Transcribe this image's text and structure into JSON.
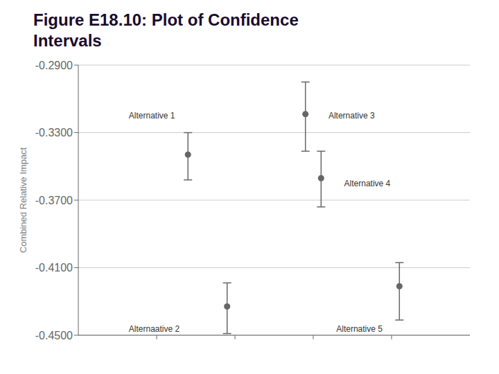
{
  "chart_data": {
    "type": "scatter",
    "title": [
      "Figure E18.10: Plot of Confidence",
      "Intervals"
    ],
    "y_label": "Combined Relative Impact",
    "x": [
      0.28,
      0.38,
      0.58,
      0.62,
      0.82
    ],
    "values": [
      -0.343,
      -0.433,
      -0.319,
      -0.357,
      -0.421
    ],
    "error_low": [
      -0.358,
      -0.449,
      -0.341,
      -0.374,
      -0.441
    ],
    "error_high": [
      -0.33,
      -0.419,
      -0.3,
      -0.341,
      -0.407
    ],
    "color": "#666666",
    "xlim": [
      0.0,
      1.0
    ],
    "xticks": [
      0.2,
      0.4,
      0.6,
      0.8
    ],
    "ylim": [
      -0.45,
      -0.29
    ],
    "yticks": [
      {
        "value": -0.45,
        "label": "-0.4500"
      },
      {
        "value": -0.41,
        "label": "-0.4100"
      },
      {
        "value": -0.37,
        "label": "-0.3700"
      },
      {
        "value": -0.33,
        "label": "-0.3300"
      },
      {
        "value": -0.29,
        "label": "-0.2900"
      }
    ],
    "tick_labels": "y",
    "grid": true,
    "annotations": [
      {
        "text": "Alternative 1",
        "x": 0.12,
        "y": -0.32
      },
      {
        "text": "Alternaative 2",
        "x": 0.12,
        "y": -0.446
      },
      {
        "text": "Alternative 3",
        "x": 0.63,
        "y": -0.32
      },
      {
        "text": "Alternative 4",
        "x": 0.67,
        "y": -0.36
      },
      {
        "text": "Alternative 5",
        "x": 0.65,
        "y": -0.446
      }
    ]
  }
}
